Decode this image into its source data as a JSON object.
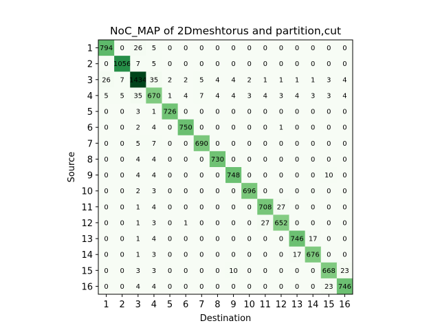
{
  "chart_data": {
    "type": "heatmap",
    "title": "NoC_MAP of 2Dmeshtorus and partition,cut",
    "xlabel": "Destination",
    "ylabel": "Source",
    "x_categories": [
      "1",
      "2",
      "3",
      "4",
      "5",
      "6",
      "7",
      "8",
      "9",
      "10",
      "11",
      "12",
      "13",
      "14",
      "15",
      "16"
    ],
    "y_categories": [
      "1",
      "2",
      "3",
      "4",
      "5",
      "6",
      "7",
      "8",
      "9",
      "10",
      "11",
      "12",
      "13",
      "14",
      "15",
      "16"
    ],
    "colormap": "Greens",
    "value_range": [
      0,
      1434
    ],
    "grid": false,
    "values": [
      [
        794,
        0,
        26,
        5,
        0,
        0,
        0,
        0,
        0,
        0,
        0,
        0,
        0,
        0,
        0,
        0
      ],
      [
        0,
        1056,
        7,
        5,
        0,
        0,
        0,
        0,
        0,
        0,
        0,
        0,
        0,
        0,
        0,
        0
      ],
      [
        26,
        7,
        1434,
        35,
        2,
        2,
        5,
        4,
        4,
        2,
        1,
        1,
        1,
        1,
        3,
        4
      ],
      [
        5,
        5,
        35,
        670,
        1,
        4,
        7,
        4,
        4,
        3,
        4,
        3,
        4,
        3,
        3,
        4
      ],
      [
        0,
        0,
        3,
        1,
        726,
        0,
        0,
        0,
        0,
        0,
        0,
        0,
        0,
        0,
        0,
        0
      ],
      [
        0,
        0,
        2,
        4,
        0,
        750,
        0,
        0,
        0,
        0,
        0,
        1,
        0,
        0,
        0,
        0
      ],
      [
        0,
        0,
        5,
        7,
        0,
        0,
        690,
        0,
        0,
        0,
        0,
        0,
        0,
        0,
        0,
        0
      ],
      [
        0,
        0,
        4,
        4,
        0,
        0,
        0,
        730,
        0,
        0,
        0,
        0,
        0,
        0,
        0,
        0
      ],
      [
        0,
        0,
        4,
        4,
        0,
        0,
        0,
        0,
        748,
        0,
        0,
        0,
        0,
        0,
        10,
        0
      ],
      [
        0,
        0,
        2,
        3,
        0,
        0,
        0,
        0,
        0,
        696,
        0,
        0,
        0,
        0,
        0,
        0
      ],
      [
        0,
        0,
        1,
        4,
        0,
        0,
        0,
        0,
        0,
        0,
        708,
        27,
        0,
        0,
        0,
        0
      ],
      [
        0,
        0,
        1,
        3,
        0,
        1,
        0,
        0,
        0,
        0,
        27,
        652,
        0,
        0,
        0,
        0
      ],
      [
        0,
        0,
        1,
        4,
        0,
        0,
        0,
        0,
        0,
        0,
        0,
        0,
        746,
        17,
        0,
        0
      ],
      [
        0,
        0,
        1,
        3,
        0,
        0,
        0,
        0,
        0,
        0,
        0,
        0,
        17,
        676,
        0,
        0
      ],
      [
        0,
        0,
        3,
        3,
        0,
        0,
        0,
        0,
        10,
        0,
        0,
        0,
        0,
        0,
        668,
        23
      ],
      [
        0,
        0,
        4,
        4,
        0,
        0,
        0,
        0,
        0,
        0,
        0,
        0,
        0,
        0,
        23,
        746
      ]
    ]
  }
}
